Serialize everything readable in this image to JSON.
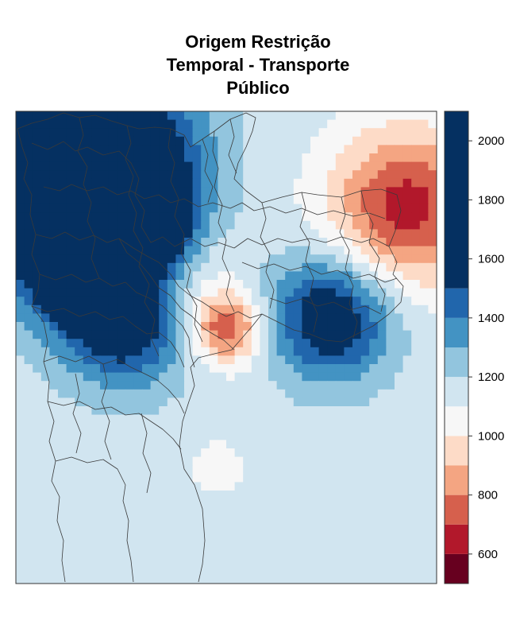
{
  "title": {
    "line1": "Origem Restrição",
    "line2": "Temporal - Transporte",
    "line3": "Público"
  },
  "chart_data": {
    "type": "heatmap",
    "subject": "raster map with municipal/district boundaries overlaid",
    "colorbar": {
      "breaks": [
        500,
        600,
        700,
        800,
        900,
        1000,
        1100,
        1200,
        1300,
        1400,
        1500,
        1600,
        1700,
        1800,
        1900,
        2000,
        2100
      ],
      "colors": [
        "#67001f",
        "#b2182b",
        "#d6604d",
        "#f4a582",
        "#fddbc7",
        "#f7f7f7",
        "#d1e5f0",
        "#92c5de",
        "#4393c3",
        "#2166ac",
        "#053061"
      ],
      "tick_labels": [
        "600",
        "800",
        "1000",
        "1200",
        "1400",
        "1600",
        "1800",
        "2000"
      ],
      "tick_values": [
        600,
        800,
        1000,
        1200,
        1400,
        1600,
        1800,
        2000
      ]
    },
    "background_value": 1150,
    "hotspots": [
      {
        "region": "north-west",
        "value": 2050,
        "radius": 0.16
      },
      {
        "region": "west",
        "value": 1850,
        "radius": 0.12
      },
      {
        "region": "west-center",
        "value": 1700,
        "radius": 0.07
      },
      {
        "region": "south-west",
        "value": 1550,
        "radius": 0.1
      },
      {
        "region": "center",
        "value": 1000,
        "radius": 0.09
      },
      {
        "region": "center-south",
        "value": 700,
        "radius": 0.06
      },
      {
        "region": "north-east",
        "value": 650,
        "radius": 0.13
      },
      {
        "region": "east",
        "value": 1650,
        "radius": 0.1
      },
      {
        "region": "south",
        "value": 1000,
        "radius": 0.04
      }
    ]
  }
}
